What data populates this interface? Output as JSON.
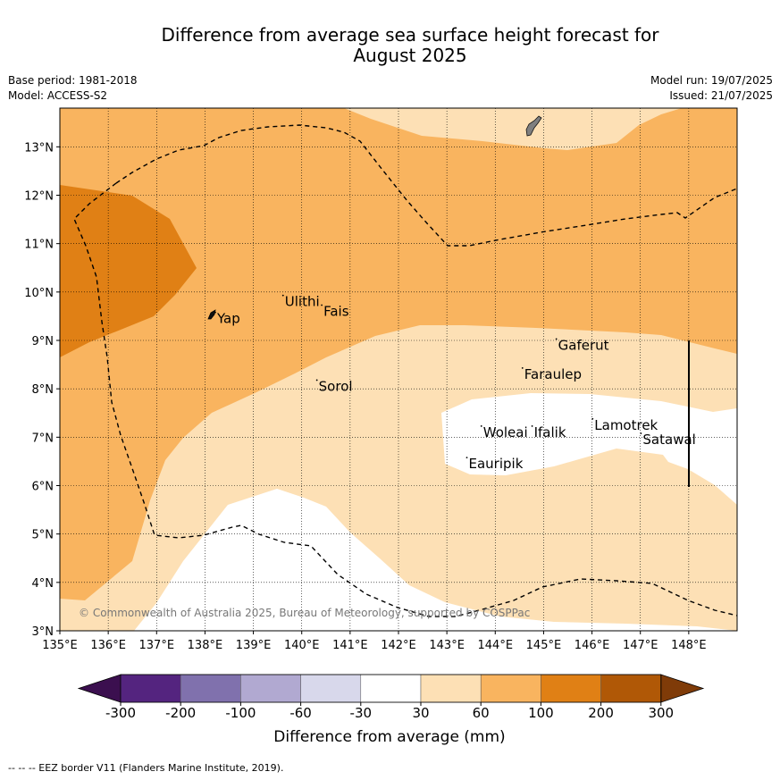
{
  "title_line1": "Difference from average sea surface height forecast for",
  "title_line2": "August 2025",
  "base_period": "Base period: 1981-2018",
  "model": "Model: ACCESS-S2",
  "model_run": "Model run: 19/07/2025",
  "issued": "Issued: 21/07/2025",
  "copyright": "© Commonwealth of Australia 2025, Bureau of Meteorology, supported by COSPPac",
  "footer_note": "--  --  -- EEZ border V11 (Flanders Marine Institute, 2019).",
  "map": {
    "lon_range": [
      135,
      149
    ],
    "lat_range": [
      3,
      13.8
    ],
    "lon_ticks": [
      135,
      136,
      137,
      138,
      139,
      140,
      141,
      142,
      143,
      144,
      145,
      146,
      147,
      148
    ],
    "lat_ticks": [
      3,
      4,
      5,
      6,
      7,
      8,
      9,
      10,
      11,
      12,
      13
    ],
    "lon_tick_labels": [
      "135°E",
      "136°E",
      "137°E",
      "138°E",
      "139°E",
      "140°E",
      "141°E",
      "142°E",
      "143°E",
      "144°E",
      "145°E",
      "146°E",
      "147°E",
      "148°E"
    ],
    "lat_tick_labels": [
      "3°N",
      "4°N",
      "5°N",
      "6°N",
      "7°N",
      "8°N",
      "9°N",
      "10°N",
      "11°N",
      "12°N",
      "13°N"
    ],
    "grid": true,
    "places": [
      {
        "name": "Yap",
        "lon": 138.25,
        "lat": 9.45
      },
      {
        "name": "Ulithi",
        "lon": 139.65,
        "lat": 9.8
      },
      {
        "name": "Fais",
        "lon": 140.45,
        "lat": 9.6
      },
      {
        "name": "Gaferut",
        "lon": 145.3,
        "lat": 8.9
      },
      {
        "name": "Faraulep",
        "lon": 144.6,
        "lat": 8.3
      },
      {
        "name": "Sorol",
        "lon": 140.35,
        "lat": 8.05
      },
      {
        "name": "Woleai",
        "lon": 143.75,
        "lat": 7.1
      },
      {
        "name": "Ifalik",
        "lon": 144.8,
        "lat": 7.1
      },
      {
        "name": "Lamotrek",
        "lon": 146.05,
        "lat": 7.25
      },
      {
        "name": "Satawal",
        "lon": 147.05,
        "lat": 6.95
      },
      {
        "name": "Eauripik",
        "lon": 143.45,
        "lat": 6.45
      }
    ]
  },
  "colorbar": {
    "label": "Difference from average (mm)",
    "tick_labels": [
      "-300",
      "-200",
      "-100",
      "-60",
      "-30",
      "30",
      "60",
      "100",
      "200",
      "300"
    ],
    "colors": [
      "#3b0f4f",
      "#54247f",
      "#8071ad",
      "#b1a9d1",
      "#d8d8eb",
      "#ffffff",
      "#fde0b5",
      "#f9b45f",
      "#e08015",
      "#b05806",
      "#7f3b08"
    ]
  }
}
